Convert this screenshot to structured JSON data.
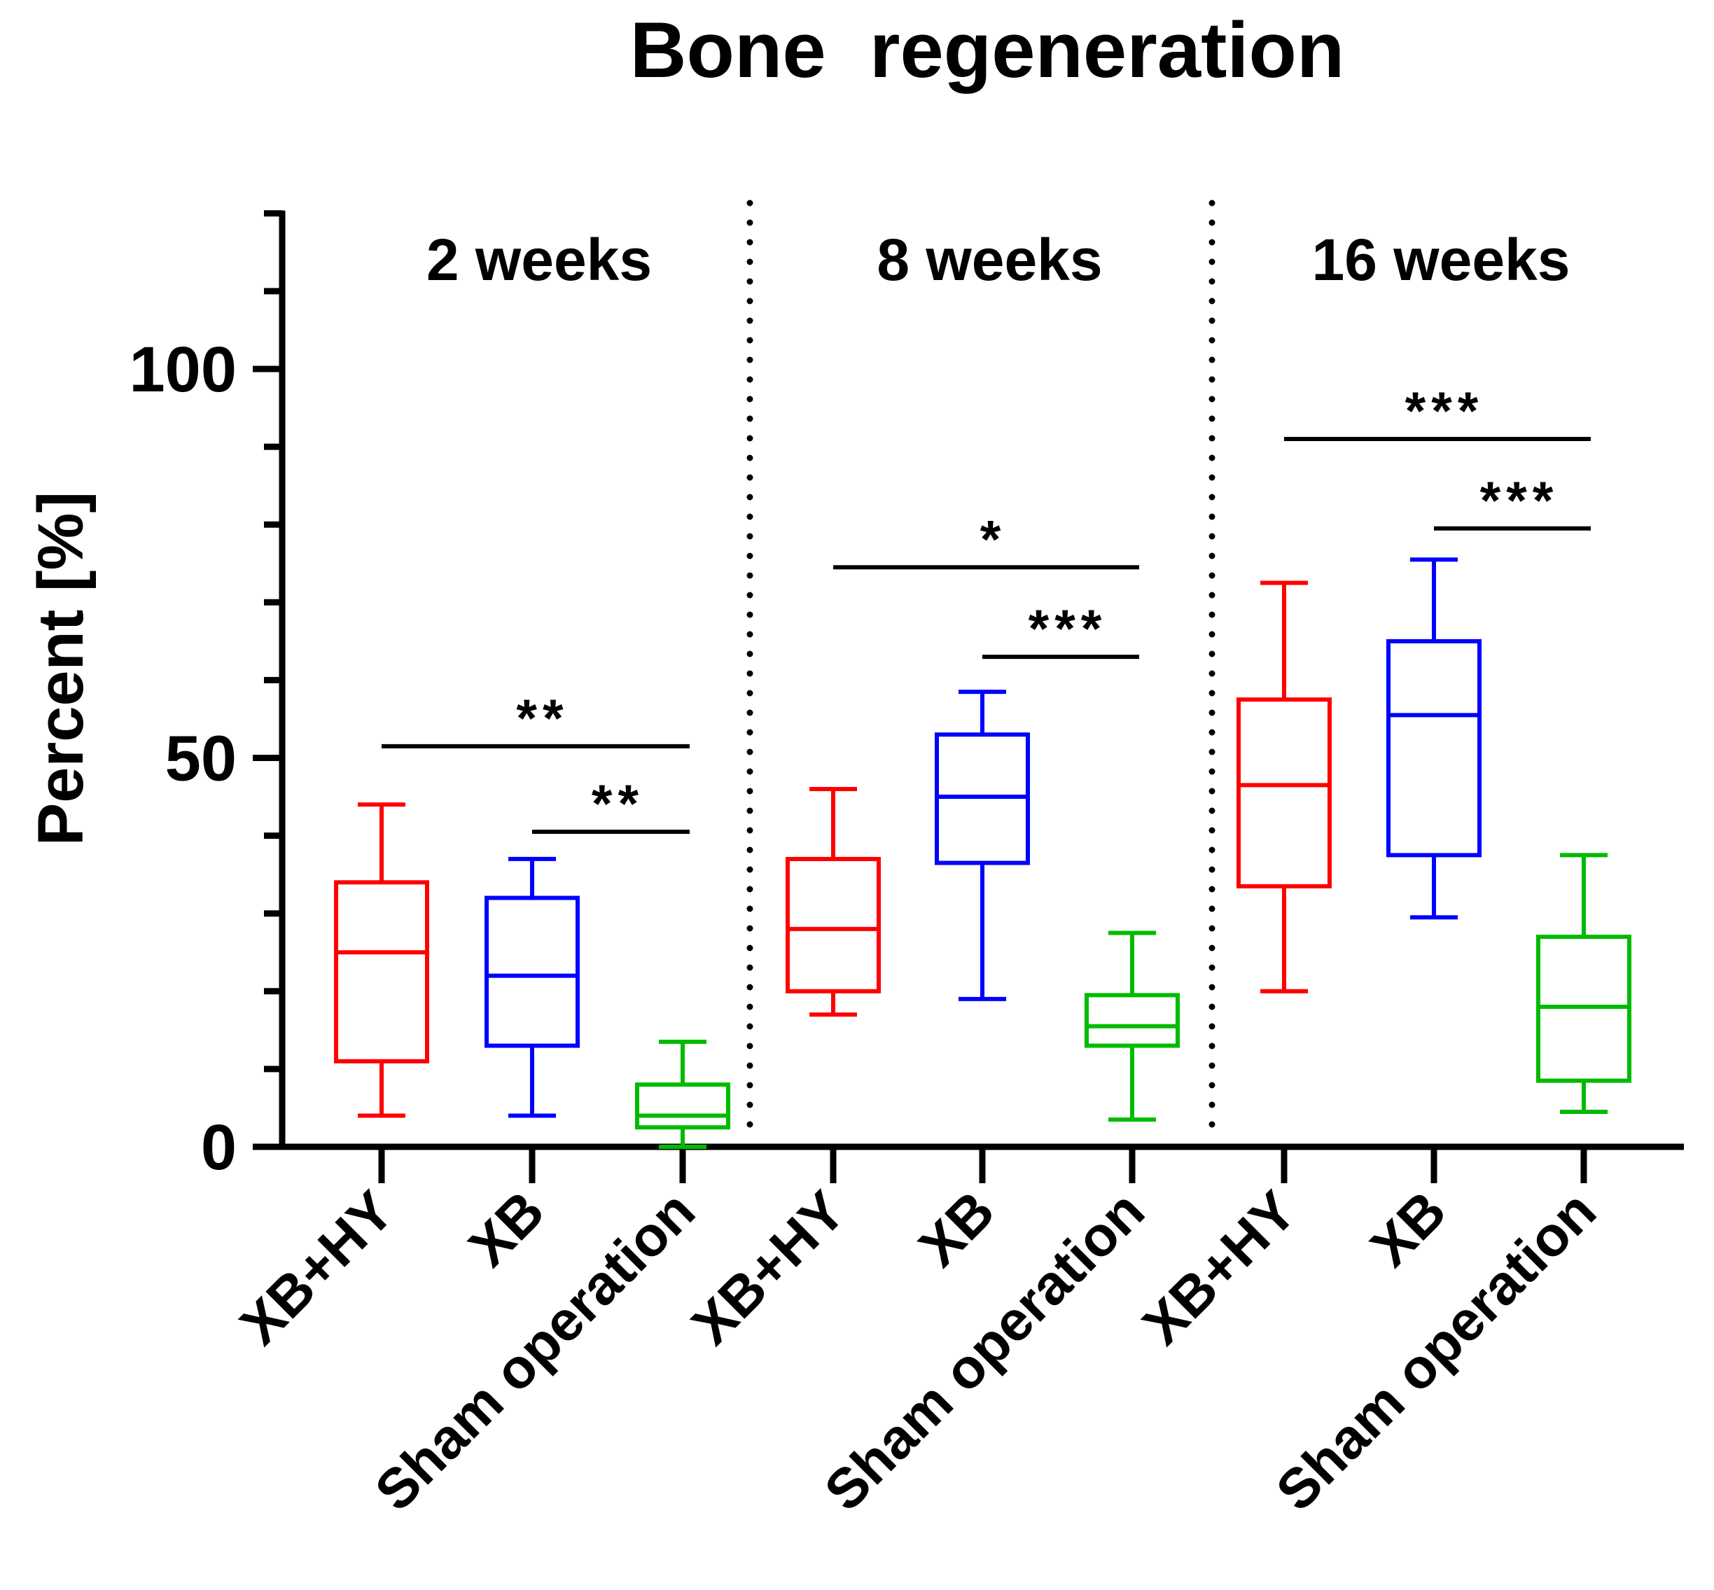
{
  "chart_data": {
    "type": "box",
    "title": "Bone  regeneration",
    "ylabel": "Percent [%]",
    "xlabel": "",
    "ylim": [
      0,
      120
    ],
    "yticks_major": [
      0,
      50,
      100
    ],
    "yticks_labels": [
      "0",
      "50",
      "100"
    ],
    "yticks_minor_step": 10,
    "colors": {
      "XB+HY": "#ff0000",
      "XB": "#0000ff",
      "Sham operation": "#00bb00",
      "axis": "#000000"
    },
    "groups": [
      {
        "label": "2 weeks",
        "boxes": [
          {
            "category": "XB+HY",
            "min": 4,
            "q1": 11,
            "median": 25,
            "q3": 34,
            "max": 44
          },
          {
            "category": "XB",
            "min": 4,
            "q1": 13,
            "median": 22,
            "q3": 32,
            "max": 37
          },
          {
            "category": "Sham operation",
            "min": 0,
            "q1": 2.5,
            "median": 4,
            "q3": 8,
            "max": 13.5
          }
        ],
        "significance": [
          {
            "from": "XB+HY",
            "to": "Sham operation",
            "y": 51.5,
            "label": "**"
          },
          {
            "from": "XB",
            "to": "Sham operation",
            "y": 40.5,
            "label": "**"
          }
        ]
      },
      {
        "label": "8 weeks",
        "boxes": [
          {
            "category": "XB+HY",
            "min": 17,
            "q1": 20,
            "median": 28,
            "q3": 37,
            "max": 46
          },
          {
            "category": "XB",
            "min": 19,
            "q1": 36.5,
            "median": 45,
            "q3": 53,
            "max": 58.5
          },
          {
            "category": "Sham operation",
            "min": 3.5,
            "q1": 13,
            "median": 15.5,
            "q3": 19.5,
            "max": 27.5
          }
        ],
        "significance": [
          {
            "from": "XB+HY",
            "to": "Sham operation",
            "y": 74.5,
            "label": "*"
          },
          {
            "from": "XB",
            "to": "Sham operation",
            "y": 63,
            "label": "***"
          }
        ]
      },
      {
        "label": "16 weeks",
        "boxes": [
          {
            "category": "XB+HY",
            "min": 20,
            "q1": 33.5,
            "median": 46.5,
            "q3": 57.5,
            "max": 72.5
          },
          {
            "category": "XB",
            "min": 29.5,
            "q1": 37.5,
            "median": 55.5,
            "q3": 65,
            "max": 75.5
          },
          {
            "category": "Sham operation",
            "min": 4.5,
            "q1": 8.5,
            "median": 18,
            "q3": 27,
            "max": 37.5
          }
        ],
        "significance": [
          {
            "from": "XB+HY",
            "to": "Sham operation",
            "y": 91,
            "label": "***"
          },
          {
            "from": "XB",
            "to": "Sham operation",
            "y": 79.5,
            "label": "***"
          }
        ]
      }
    ]
  }
}
